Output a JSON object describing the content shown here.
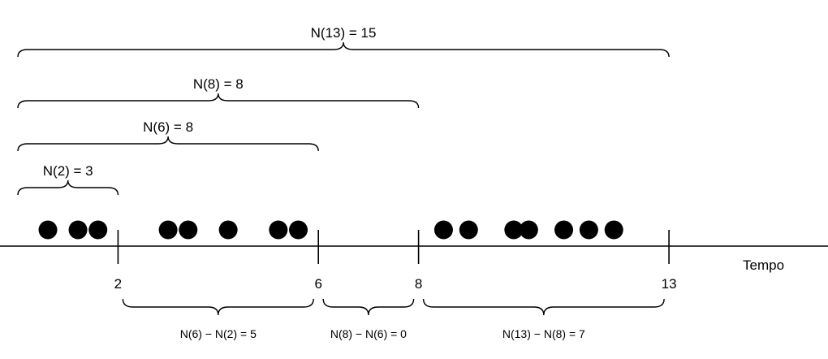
{
  "axis": {
    "label": "Tempo"
  },
  "ticks": [
    {
      "value": 2,
      "label": "2"
    },
    {
      "value": 6,
      "label": "6"
    },
    {
      "value": 8,
      "label": "8"
    },
    {
      "value": 13,
      "label": "13"
    }
  ],
  "top_braces": [
    {
      "label": "N(13) = 15",
      "from": 0,
      "to": 13
    },
    {
      "label": "N(8) = 8",
      "from": 0,
      "to": 8
    },
    {
      "label": "N(6) = 8",
      "from": 0,
      "to": 6
    },
    {
      "label": "N(2) = 3",
      "from": 0,
      "to": 2
    }
  ],
  "bottom_braces": [
    {
      "label": "N(6) − N(2) = 5",
      "from": 2,
      "to": 6
    },
    {
      "label": "N(8) − N(6) = 0",
      "from": 6,
      "to": 8
    },
    {
      "label": "N(13) − N(8) = 7",
      "from": 8,
      "to": 13
    }
  ],
  "events": [
    0.6,
    1.2,
    1.6,
    3.0,
    3.4,
    4.2,
    5.2,
    5.6,
    8.5,
    9.0,
    9.9,
    10.2,
    10.9,
    11.4,
    11.9
  ]
}
